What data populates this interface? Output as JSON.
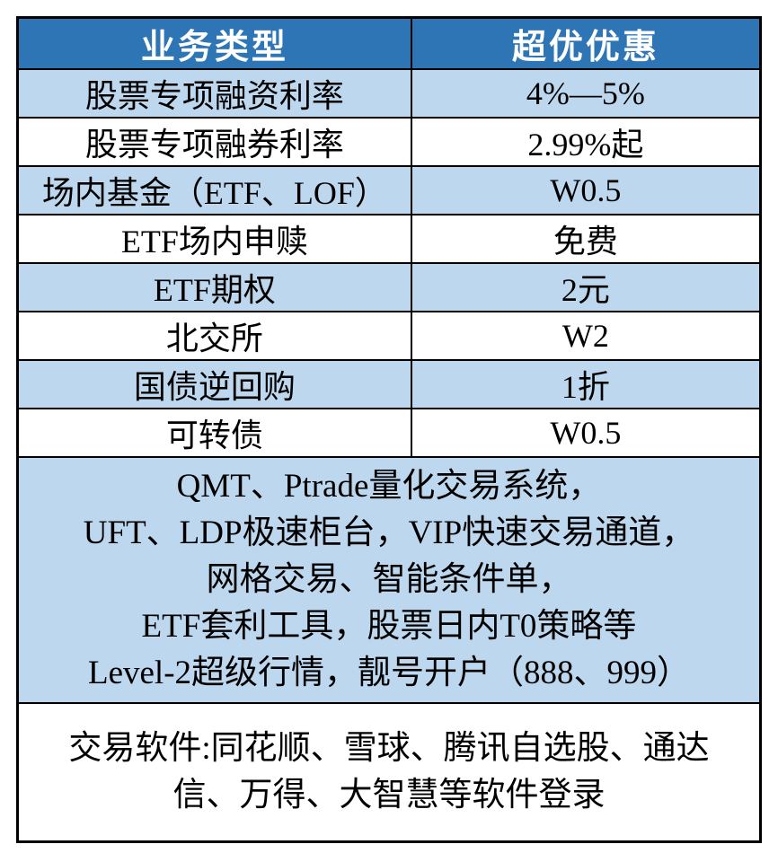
{
  "colors": {
    "header_bg": "#2E75B6",
    "header_text": "#FFFFFF",
    "alt_row_bg": "#BDD7EE",
    "row_bg": "#FFFFFF",
    "border": "#000000",
    "body_text": "#000000"
  },
  "table": {
    "header": {
      "business_type": "业务类型",
      "discount": "超优优惠"
    },
    "rows": [
      {
        "label": "股票专项融资利率",
        "value": "4%—5%"
      },
      {
        "label": "股票专项融券利率",
        "value": "2.99%起"
      },
      {
        "label": "场内基金（ETF、LOF）",
        "value": "W0.5"
      },
      {
        "label": "ETF场内申赎",
        "value": "免费"
      },
      {
        "label": "ETF期权",
        "value": "2元"
      },
      {
        "label": "北交所",
        "value": "W2"
      },
      {
        "label": "国债逆回购",
        "value": "1折"
      },
      {
        "label": "可转债",
        "value": "W0.5"
      }
    ],
    "features": {
      "lines": [
        "QMT、Ptrade量化交易系统，",
        "UFT、LDP极速柜台，VIP快速交易通道，",
        "网格交易、智能条件单，",
        "ETF套利工具，股票日内T0策略等",
        "Level-2超级行情，靓号开户（888、999）"
      ]
    },
    "software": {
      "lines": [
        "交易软件:同花顺、雪球、腾讯自选股、通达",
        "信、万得、大智慧等软件登录"
      ]
    }
  }
}
